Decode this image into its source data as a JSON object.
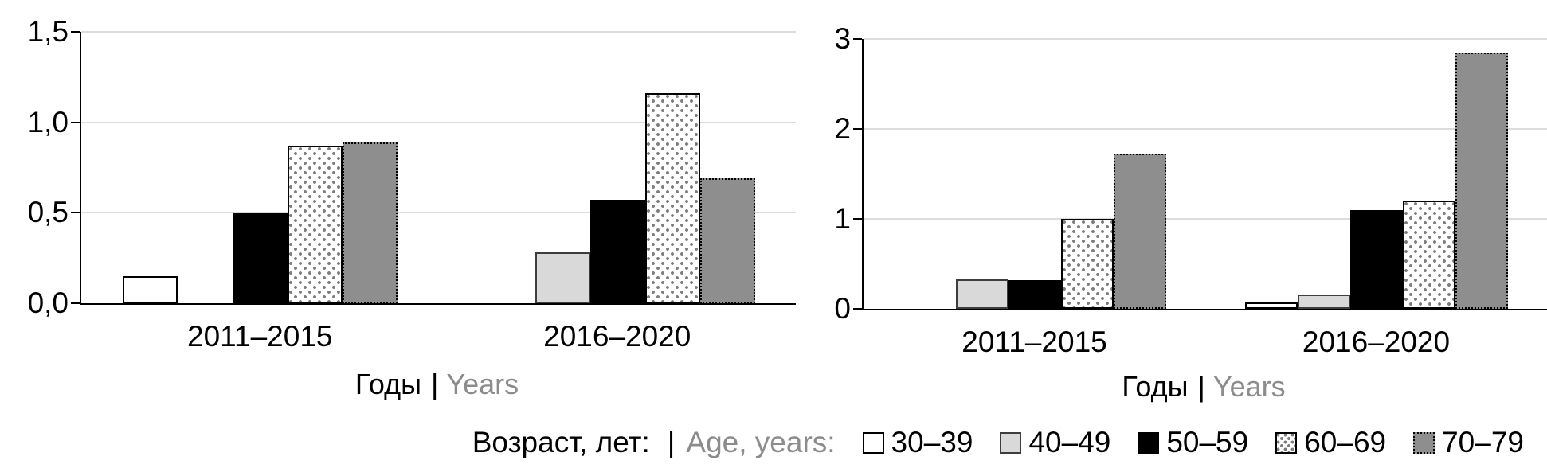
{
  "chart_data": [
    {
      "type": "bar",
      "title": "",
      "categories": [
        "2011–2015",
        "2016–2020"
      ],
      "series": [
        {
          "name": "30–39",
          "swatch": "white",
          "values": [
            0.15,
            0
          ]
        },
        {
          "name": "40–49",
          "swatch": "light-gray",
          "values": [
            0,
            0.28
          ]
        },
        {
          "name": "50–59",
          "swatch": "black",
          "values": [
            0.5,
            0.57
          ]
        },
        {
          "name": "60–69",
          "swatch": "dotted",
          "values": [
            0.87,
            1.16
          ]
        },
        {
          "name": "70–79",
          "swatch": "gray",
          "values": [
            0.89,
            0.69
          ]
        }
      ],
      "xlabel": "Годы | Years",
      "xlabel_ru": "Годы",
      "xlabel_sep": "|",
      "xlabel_en": "Years",
      "ylabel": "",
      "ylim": [
        0,
        1.5
      ],
      "yticks": [
        "0,0",
        "0,5",
        "1,0",
        "1,5"
      ],
      "grid": true,
      "legend_position": "shared-bottom"
    },
    {
      "type": "bar",
      "title": "",
      "categories": [
        "2011–2015",
        "2016–2020"
      ],
      "series": [
        {
          "name": "30–39",
          "swatch": "white",
          "values": [
            0,
            0.07
          ]
        },
        {
          "name": "40–49",
          "swatch": "light-gray",
          "values": [
            0.33,
            0.16
          ]
        },
        {
          "name": "50–59",
          "swatch": "black",
          "values": [
            0.32,
            1.1
          ]
        },
        {
          "name": "60–69",
          "swatch": "dotted",
          "values": [
            1.0,
            1.2
          ]
        },
        {
          "name": "70–79",
          "swatch": "gray",
          "values": [
            1.73,
            2.85
          ]
        }
      ],
      "xlabel": "Годы | Years",
      "xlabel_ru": "Годы",
      "xlabel_sep": "|",
      "xlabel_en": "Years",
      "ylabel": "",
      "ylim": [
        0,
        3
      ],
      "yticks": [
        "0",
        "1",
        "2",
        "3"
      ],
      "grid": true,
      "legend_position": "shared-bottom"
    }
  ],
  "legend": {
    "title_ru": "Возраст, лет:",
    "sep": "|",
    "title_en": "Age, years:",
    "items": [
      {
        "label": "30–39",
        "swatch": "white"
      },
      {
        "label": "40–49",
        "swatch": "light-gray"
      },
      {
        "label": "50–59",
        "swatch": "black"
      },
      {
        "label": "60–69",
        "swatch": "dotted"
      },
      {
        "label": "70–79",
        "swatch": "gray"
      }
    ]
  },
  "colors": {
    "bar_white": "#ffffff",
    "bar_light_gray": "#d9d9d9",
    "bar_black": "#000000",
    "bar_dot_foreground": "#7d7d7d",
    "bar_gray": "#8e8e8e",
    "gridline": "#dcdcdc",
    "axis": "#000000",
    "muted_text": "#8c8c8c"
  }
}
